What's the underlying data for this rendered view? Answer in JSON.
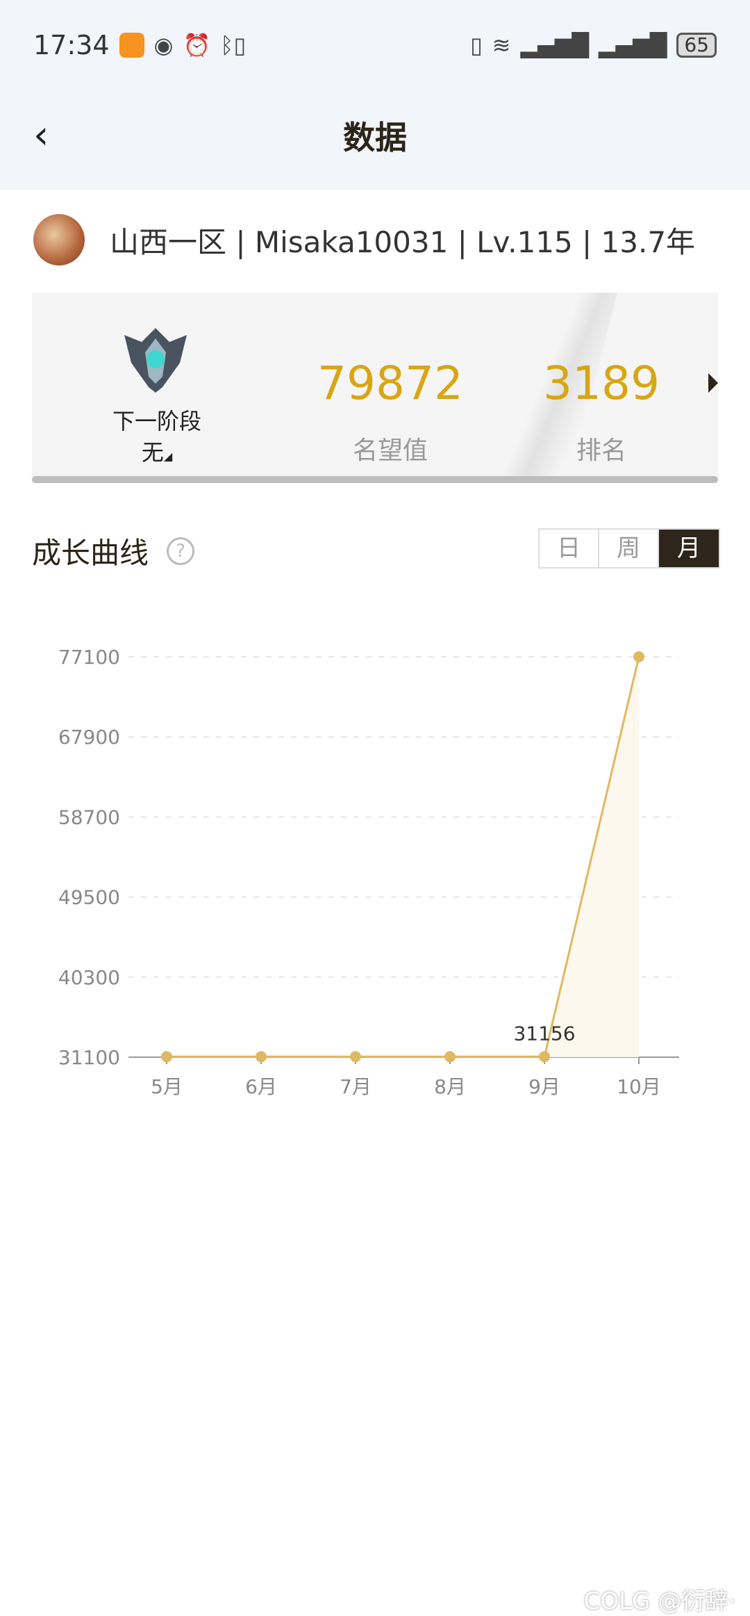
{
  "status_bar": {
    "time": "17:34",
    "battery": "65",
    "icons": [
      "app-icon",
      "eye-icon",
      "alarm-icon",
      "bluetooth-icon",
      "vibrate-icon",
      "wifi-icon",
      "signal-icon",
      "signal-icon",
      "battery-icon"
    ]
  },
  "header": {
    "title": "数据",
    "back_icon": "chevron-left-icon"
  },
  "profile": {
    "info": "山西一区 | Misaka10031 | Lv.115 | 13.7年"
  },
  "card": {
    "stage_label": "下一阶段",
    "stage_value": "无",
    "reputation_value": "79872",
    "reputation_label": "名望值",
    "rank_value": "3189",
    "rank_label": "排名",
    "accent": "#d8a614"
  },
  "section": {
    "title": "成长曲线",
    "help_icon": "question-circle-icon",
    "tabs": [
      {
        "label": "日",
        "active": false
      },
      {
        "label": "周",
        "active": false
      },
      {
        "label": "月",
        "active": true
      }
    ]
  },
  "chart_data": {
    "type": "area",
    "categories": [
      "5月",
      "6月",
      "7月",
      "8月",
      "9月",
      "10月"
    ],
    "values": [
      31156,
      31156,
      31156,
      31156,
      31156,
      77100
    ],
    "yticks": [
      "31100",
      "40300",
      "49500",
      "58700",
      "67900",
      "77100"
    ],
    "ylim": [
      31100,
      77100
    ],
    "annotations": [
      {
        "category": "9月",
        "label": "31156"
      }
    ],
    "grid": true,
    "color": "#dfb862"
  },
  "watermark": "COLG @衍辞·"
}
